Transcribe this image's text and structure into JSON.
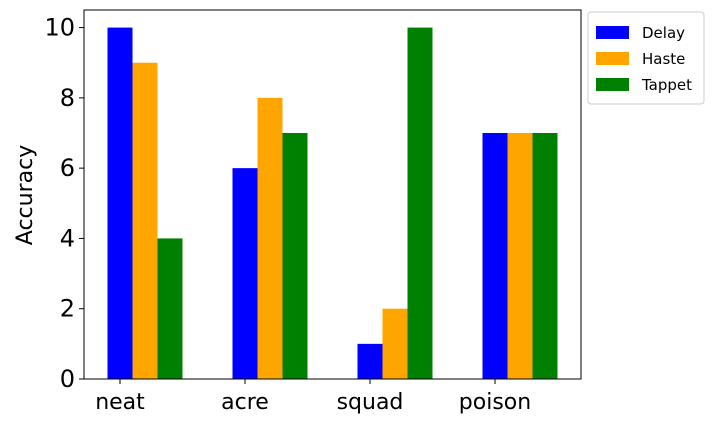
{
  "chart_data": {
    "type": "bar",
    "title": "",
    "xlabel": "",
    "ylabel": "Accuracy",
    "categories": [
      "neat",
      "acre",
      "squad",
      "poison"
    ],
    "series": [
      {
        "name": "Delay",
        "color": "#0000ff",
        "values": [
          10,
          6,
          1,
          7
        ]
      },
      {
        "name": "Haste",
        "color": "#ffa500",
        "values": [
          9,
          8,
          2,
          7
        ]
      },
      {
        "name": "Tappet",
        "color": "#008000",
        "values": [
          4,
          7,
          10,
          7
        ]
      }
    ],
    "ylim": [
      0,
      10.5
    ],
    "yticks": [
      0,
      2,
      4,
      6,
      8,
      10
    ],
    "grid": false,
    "legend_position": "outside-top-right"
  }
}
